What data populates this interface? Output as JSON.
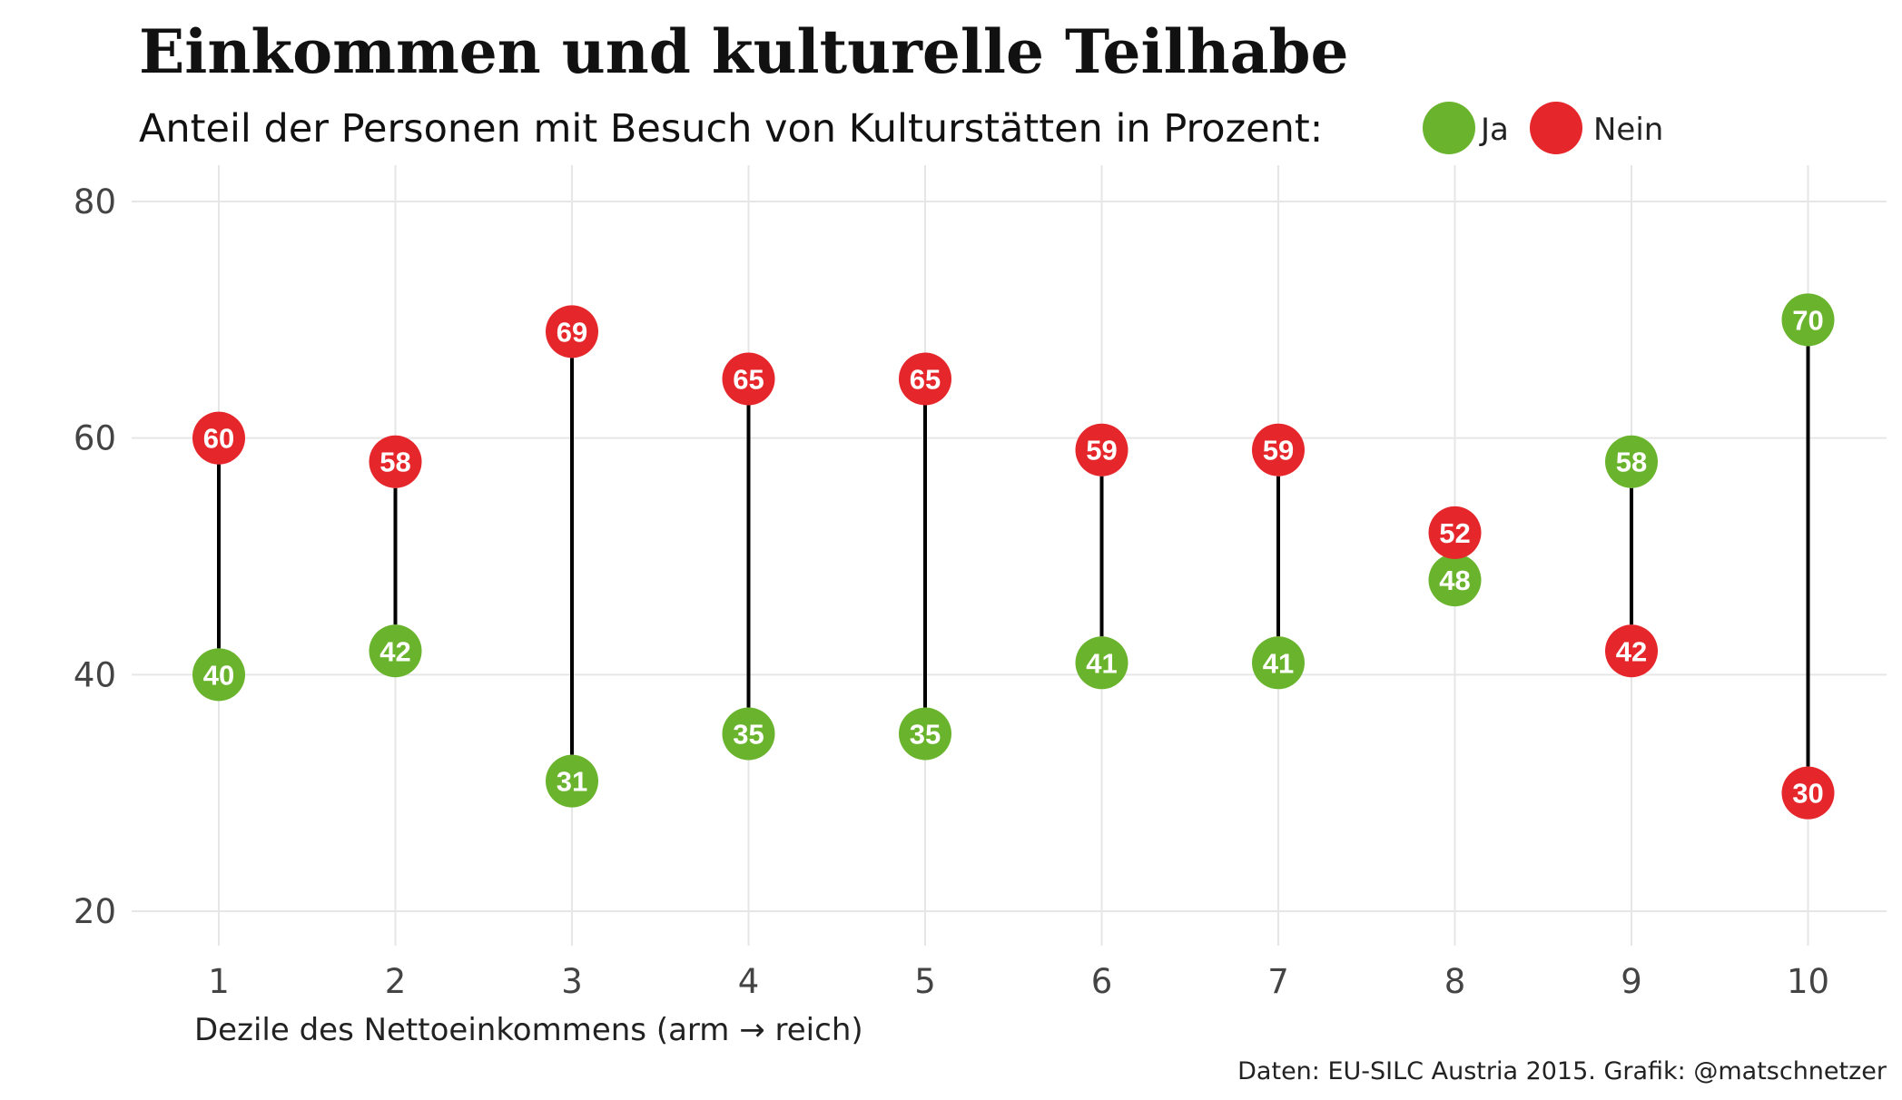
{
  "chart_data": {
    "type": "dumbbell",
    "title": "Einkommen und kulturelle Teilhabe",
    "subtitle": "Anteil der Personen mit Besuch von Kulturstätten in Prozent:",
    "xlabel": "Dezile des Nettoeinkommens (arm → reich)",
    "caption": "Daten: EU-SILC Austria 2015. Grafik: @matschnetzer",
    "categories": [
      "1",
      "2",
      "3",
      "4",
      "5",
      "6",
      "7",
      "8",
      "9",
      "10"
    ],
    "ylim": [
      20,
      80
    ],
    "yticks": [
      "20",
      "40",
      "60",
      "80"
    ],
    "grid": true,
    "legend_position": "top, after subtitle",
    "series": [
      {
        "name": "Ja",
        "color": "#6ab42d",
        "values": [
          40,
          42,
          31,
          35,
          35,
          41,
          41,
          48,
          58,
          70
        ]
      },
      {
        "name": "Nein",
        "color": "#e5262b",
        "values": [
          60,
          58,
          69,
          65,
          65,
          59,
          59,
          52,
          42,
          30
        ]
      }
    ]
  }
}
